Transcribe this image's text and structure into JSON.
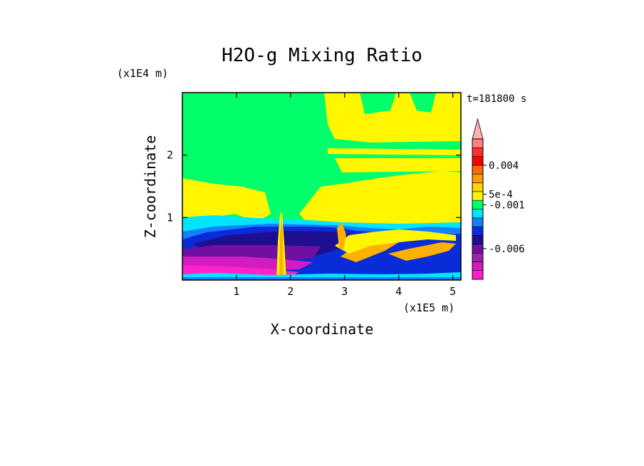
{
  "chart_data": {
    "type": "heatmap",
    "title": "H2O-g Mixing Ratio",
    "xlabel": "X-coordinate",
    "ylabel": "Z-coordinate",
    "x_scale_label": "(x1E5 m)",
    "y_scale_label": "(x1E4 m)",
    "time_label": "t=181800 s",
    "xlim": [
      0,
      5.15
    ],
    "ylim": [
      0,
      3
    ],
    "x_ticks": [
      1,
      2,
      3,
      4,
      5
    ],
    "y_ticks": [
      1,
      2
    ],
    "colorbar": {
      "colors": [
        "#ff22cc",
        "#d21cc0",
        "#a020b0",
        "#7010a0",
        "#1e0f90",
        "#0a2cd8",
        "#1480ff",
        "#00e5ff",
        "#00ff6a",
        "#fff600",
        "#ffd400",
        "#ff9c00",
        "#ff6a00",
        "#ff0000",
        "#ff3030",
        "#ff8080"
      ],
      "extend_max_color": "#ffb0b0",
      "labels": [
        {
          "text": "0.004",
          "level": 13
        },
        {
          "text": "5e-4",
          "level": 9.7
        },
        {
          "text": "-0.001",
          "level": 8.5
        },
        {
          "text": "-0.006",
          "level": 3.5
        }
      ]
    },
    "field_colors": {
      "background": "#00ff6a",
      "moist": "#fff600",
      "orange": "#ffb000",
      "cyan": "#00e5ff",
      "blue": "#1480ff",
      "dark_blue": "#0a2cd8",
      "navy": "#1e0f90",
      "purple": "#7010a0",
      "magenta": "#d21cc0",
      "pink": "#ff22cc"
    }
  }
}
